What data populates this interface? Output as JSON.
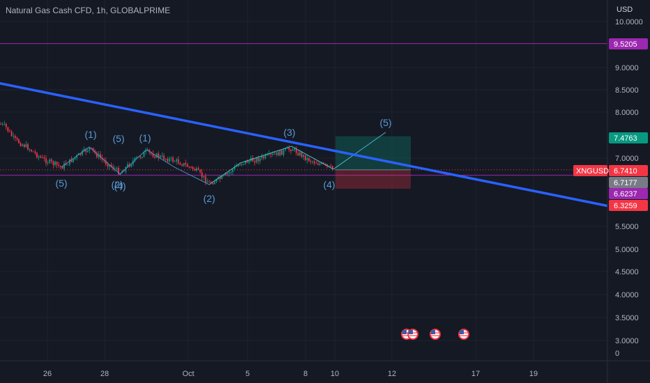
{
  "header": {
    "title": "Natural Gas Cash CFD, 1h, GLOBALPRIME",
    "currency": "USD"
  },
  "chart_data": {
    "type": "candlestick",
    "symbol": "XNGUSD",
    "y_ticks": [
      "10.0000",
      "9.0000",
      "8.5000",
      "8.0000",
      "7.0000",
      "5.5000",
      "5.0000",
      "4.5000",
      "4.0000",
      "3.5000",
      "3.0000",
      "0"
    ],
    "x_ticks": [
      "26",
      "28",
      "Oct",
      "5",
      "8",
      "10",
      "12",
      "17",
      "19"
    ],
    "price_tags": [
      {
        "label": "9.5205",
        "value": 9.5205,
        "color": "#9c27b0"
      },
      {
        "label": "7.4763",
        "value": 7.4763,
        "color": "#089981"
      },
      {
        "label": "6.7410",
        "value": 6.741,
        "color": "#f23645"
      },
      {
        "label": "6.7177",
        "value": 6.7177,
        "color": "#787b86"
      },
      {
        "label": "6.6237",
        "value": 6.6237,
        "color": "#9c27b0"
      },
      {
        "label": "6.3259",
        "value": 6.3259,
        "color": "#f23645"
      }
    ],
    "symbol_tag": {
      "label": "XNGUSD",
      "value": 6.741,
      "color": "#f23645"
    },
    "horizontal_lines": [
      9.5205,
      6.6237
    ],
    "trendline": {
      "x0": -0.02,
      "y0": 8.7,
      "x1": 1.0,
      "y1": 5.95,
      "color": "#2962ff"
    },
    "wave_labels": [
      "(5)",
      "(1)",
      "(5)",
      "(2)",
      "(4)",
      "(1)",
      "(2)",
      "(3)",
      "(4)",
      "(5)"
    ],
    "position": {
      "entry": 6.741,
      "target": 7.4763,
      "stop": 6.3259
    },
    "event_flags": 4
  }
}
